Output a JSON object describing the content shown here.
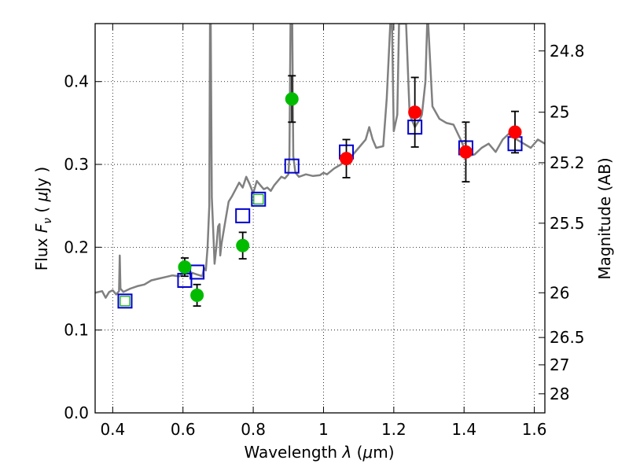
{
  "chart_data": {
    "type": "scatter",
    "xlabel": "Wavelength  λ (μm)",
    "ylabel": "Flux  F_ν  ( μJy )",
    "y2label": "Magnitude (AB)",
    "xlim": [
      0.35,
      1.63
    ],
    "ylim": [
      0.0,
      0.47
    ],
    "xticks": [
      0.4,
      0.6,
      0.8,
      1.0,
      1.2,
      1.4,
      1.6
    ],
    "xtick_labels": [
      "0.4",
      "0.6",
      "0.8",
      "1",
      "1.2",
      "1.4",
      "1.6"
    ],
    "yticks": [
      0.0,
      0.1,
      0.2,
      0.3,
      0.4
    ],
    "ytick_labels": [
      "0.0",
      "0.1",
      "0.2",
      "0.3",
      "0.4"
    ],
    "y2ticks": [
      {
        "label": "24.8",
        "flux": 0.437
      },
      {
        "label": "25",
        "flux": 0.363
      },
      {
        "label": "25.2",
        "flux": 0.302
      },
      {
        "label": "25.5",
        "flux": 0.229
      },
      {
        "label": "26",
        "flux": 0.145
      },
      {
        "label": "26.5",
        "flux": 0.091
      },
      {
        "label": "27",
        "flux": 0.058
      },
      {
        "label": "28",
        "flux": 0.023
      }
    ],
    "grid": true,
    "colors": {
      "model": "#808080",
      "green_points": "#00bb00",
      "red_points": "#ff0000",
      "boxes": "#0000cc",
      "box_inner": "#00aa00",
      "errorbars": "#000000"
    },
    "series": [
      {
        "kind": "line",
        "points": [
          [
            0.35,
            0.145
          ],
          [
            0.37,
            0.147
          ],
          [
            0.38,
            0.139
          ],
          [
            0.39,
            0.146
          ],
          [
            0.4,
            0.148
          ],
          [
            0.41,
            0.143
          ],
          [
            0.418,
            0.147
          ],
          [
            0.42,
            0.19
          ],
          [
            0.422,
            0.15
          ],
          [
            0.43,
            0.146
          ],
          [
            0.45,
            0.15
          ],
          [
            0.47,
            0.153
          ],
          [
            0.49,
            0.155
          ],
          [
            0.51,
            0.16
          ],
          [
            0.53,
            0.162
          ],
          [
            0.55,
            0.164
          ],
          [
            0.57,
            0.166
          ],
          [
            0.59,
            0.165
          ],
          [
            0.6,
            0.168
          ],
          [
            0.62,
            0.17
          ],
          [
            0.64,
            0.167
          ],
          [
            0.655,
            0.165
          ],
          [
            0.66,
            0.175
          ],
          [
            0.665,
            0.172
          ],
          [
            0.67,
            0.2
          ],
          [
            0.675,
            0.25
          ],
          [
            0.677,
            0.47
          ],
          [
            0.679,
            0.47
          ],
          [
            0.682,
            0.26
          ],
          [
            0.686,
            0.22
          ],
          [
            0.69,
            0.18
          ],
          [
            0.695,
            0.2
          ],
          [
            0.7,
            0.225
          ],
          [
            0.704,
            0.228
          ],
          [
            0.706,
            0.19
          ],
          [
            0.71,
            0.205
          ],
          [
            0.72,
            0.23
          ],
          [
            0.73,
            0.255
          ],
          [
            0.74,
            0.262
          ],
          [
            0.75,
            0.27
          ],
          [
            0.76,
            0.278
          ],
          [
            0.77,
            0.272
          ],
          [
            0.78,
            0.285
          ],
          [
            0.79,
            0.276
          ],
          [
            0.8,
            0.265
          ],
          [
            0.81,
            0.28
          ],
          [
            0.82,
            0.275
          ],
          [
            0.83,
            0.27
          ],
          [
            0.84,
            0.272
          ],
          [
            0.85,
            0.268
          ],
          [
            0.86,
            0.275
          ],
          [
            0.87,
            0.28
          ],
          [
            0.88,
            0.285
          ],
          [
            0.89,
            0.283
          ],
          [
            0.9,
            0.288
          ],
          [
            0.903,
            0.31
          ],
          [
            0.906,
            0.47
          ],
          [
            0.911,
            0.47
          ],
          [
            0.914,
            0.31
          ],
          [
            0.92,
            0.29
          ],
          [
            0.93,
            0.285
          ],
          [
            0.95,
            0.288
          ],
          [
            0.97,
            0.286
          ],
          [
            0.99,
            0.287
          ],
          [
            1.0,
            0.29
          ],
          [
            1.01,
            0.288
          ],
          [
            1.03,
            0.295
          ],
          [
            1.05,
            0.3
          ],
          [
            1.06,
            0.305
          ],
          [
            1.08,
            0.31
          ],
          [
            1.1,
            0.32
          ],
          [
            1.12,
            0.33
          ],
          [
            1.13,
            0.345
          ],
          [
            1.14,
            0.33
          ],
          [
            1.15,
            0.32
          ],
          [
            1.17,
            0.322
          ],
          [
            1.18,
            0.38
          ],
          [
            1.19,
            0.47
          ],
          [
            1.195,
            0.47
          ],
          [
            1.2,
            0.34
          ],
          [
            1.21,
            0.36
          ],
          [
            1.215,
            0.47
          ],
          [
            1.235,
            0.47
          ],
          [
            1.245,
            0.36
          ],
          [
            1.25,
            0.355
          ],
          [
            1.26,
            0.345
          ],
          [
            1.275,
            0.355
          ],
          [
            1.28,
            0.36
          ],
          [
            1.29,
            0.4
          ],
          [
            1.295,
            0.47
          ],
          [
            1.298,
            0.47
          ],
          [
            1.31,
            0.37
          ],
          [
            1.33,
            0.355
          ],
          [
            1.35,
            0.35
          ],
          [
            1.37,
            0.348
          ],
          [
            1.39,
            0.33
          ],
          [
            1.41,
            0.31
          ],
          [
            1.43,
            0.312
          ],
          [
            1.45,
            0.32
          ],
          [
            1.47,
            0.325
          ],
          [
            1.49,
            0.315
          ],
          [
            1.51,
            0.33
          ],
          [
            1.53,
            0.338
          ],
          [
            1.55,
            0.33
          ],
          [
            1.57,
            0.325
          ],
          [
            1.59,
            0.32
          ],
          [
            1.61,
            0.33
          ],
          [
            1.63,
            0.325
          ]
        ]
      },
      {
        "kind": "boxes",
        "points": [
          {
            "x": 0.435,
            "y": 0.135,
            "green": true
          },
          {
            "x": 0.605,
            "y": 0.16,
            "green": false
          },
          {
            "x": 0.64,
            "y": 0.17,
            "green": false
          },
          {
            "x": 0.77,
            "y": 0.238,
            "green": false
          },
          {
            "x": 0.815,
            "y": 0.258,
            "green": true
          },
          {
            "x": 0.91,
            "y": 0.298,
            "green": false
          },
          {
            "x": 1.065,
            "y": 0.315,
            "green": false
          },
          {
            "x": 1.26,
            "y": 0.345,
            "green": false
          },
          {
            "x": 1.405,
            "y": 0.32,
            "green": false
          },
          {
            "x": 1.545,
            "y": 0.325,
            "green": false
          }
        ]
      },
      {
        "kind": "points_green",
        "points": [
          {
            "x": 0.605,
            "y": 0.176,
            "err": 0.011
          },
          {
            "x": 0.64,
            "y": 0.142,
            "err": 0.013
          },
          {
            "x": 0.77,
            "y": 0.202,
            "err": 0.016
          },
          {
            "x": 0.91,
            "y": 0.379,
            "err": 0.028
          }
        ]
      },
      {
        "kind": "points_red",
        "points": [
          {
            "x": 1.065,
            "y": 0.307,
            "err": 0.023
          },
          {
            "x": 1.26,
            "y": 0.363,
            "err": 0.042
          },
          {
            "x": 1.405,
            "y": 0.315,
            "err": 0.036
          },
          {
            "x": 1.545,
            "y": 0.339,
            "err": 0.025
          }
        ]
      }
    ]
  }
}
